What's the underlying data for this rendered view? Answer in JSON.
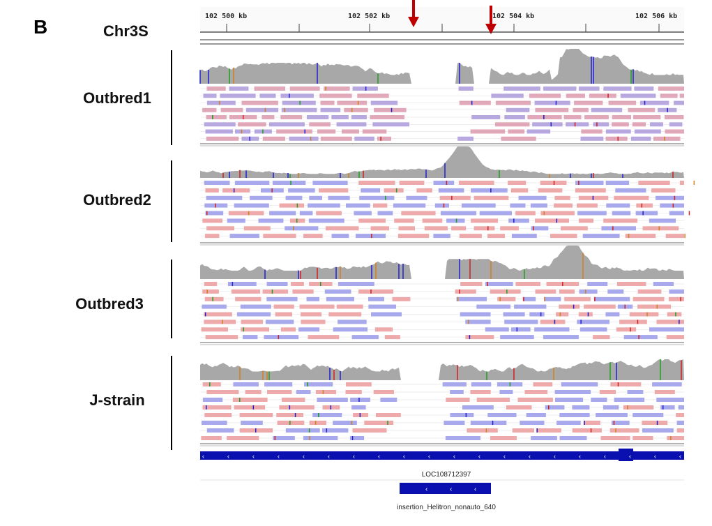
{
  "panel_label": "B",
  "chromosome": "Chr3S",
  "ruler": {
    "ticks": [
      "102 500 kb",
      "102 502 kb",
      "102 504 kb",
      "102 506 kb"
    ]
  },
  "tracks": [
    {
      "label": "Outbred1"
    },
    {
      "label": "Outbred2"
    },
    {
      "label": "Outbred3"
    },
    {
      "label": "J-strain"
    }
  ],
  "annotations": [
    {
      "label": "LOC108712397"
    },
    {
      "label": "insertion_Helitron_nonauto_640"
    }
  ]
}
